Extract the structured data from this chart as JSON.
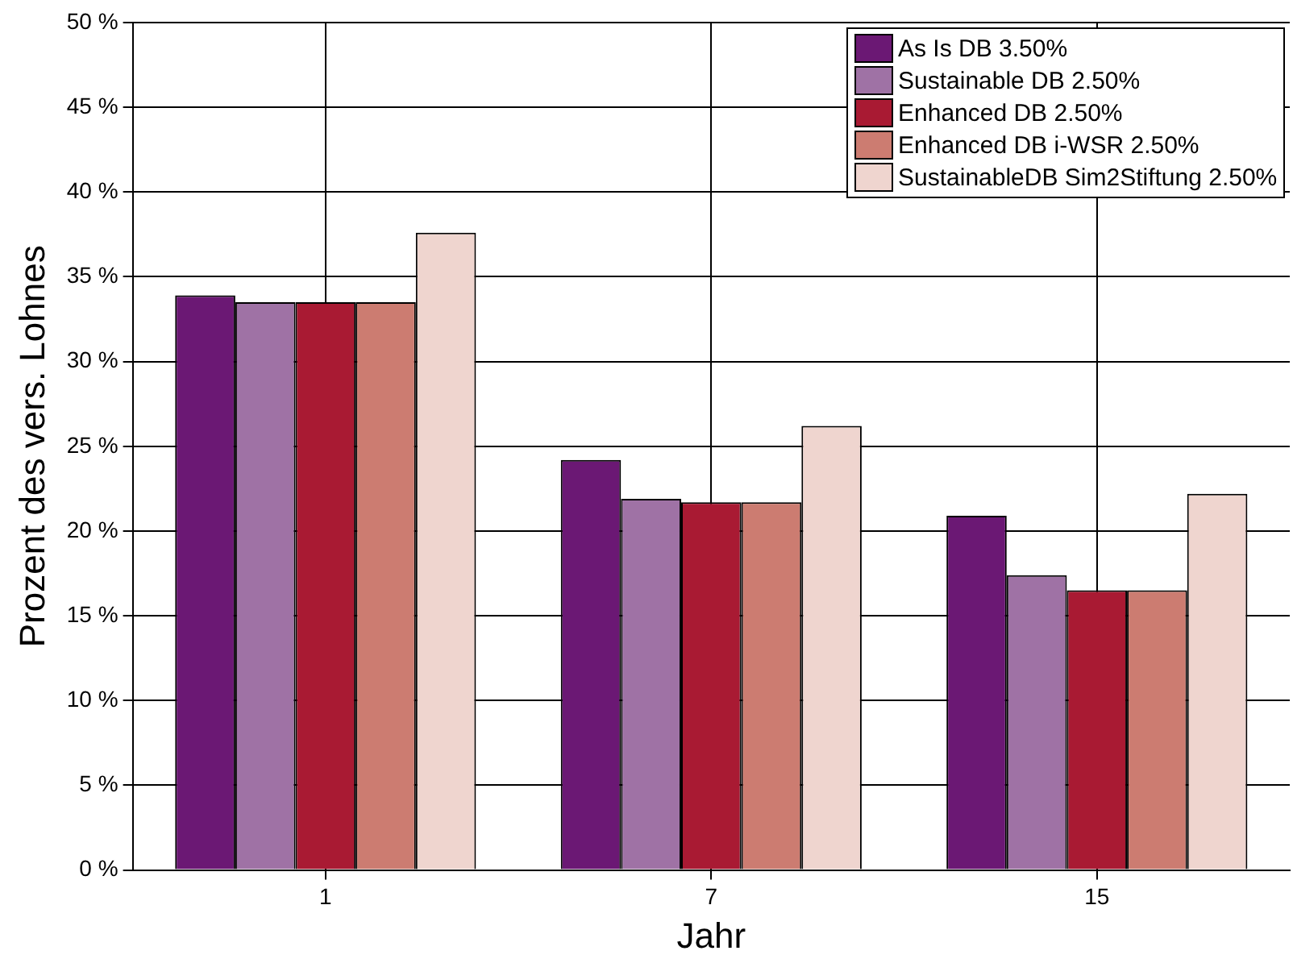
{
  "chart_data": {
    "type": "bar",
    "xlabel": "Jahr",
    "ylabel": "Prozent des vers. Lohnes",
    "categories": [
      "1",
      "7",
      "15"
    ],
    "series": [
      {
        "name": "As Is DB 3.50%",
        "color": "#6b1874",
        "values": [
          33.9,
          24.2,
          20.9
        ]
      },
      {
        "name": "Sustainable DB 2.50%",
        "color": "#9f72a5",
        "values": [
          33.5,
          21.9,
          17.4
        ]
      },
      {
        "name": "Enhanced DB 2.50%",
        "color": "#a91a33",
        "values": [
          33.5,
          21.7,
          16.5
        ]
      },
      {
        "name": "Enhanced DB i-WSR 2.50%",
        "color": "#cc7c71",
        "values": [
          33.5,
          21.7,
          16.5
        ]
      },
      {
        "name": "SustainableDB Sim2Stiftung 2.50%",
        "color": "#efd5cf",
        "values": [
          37.6,
          26.2,
          22.2
        ]
      }
    ],
    "ylim": [
      0,
      50
    ],
    "yticks": [
      {
        "value": 0,
        "label": "0 %"
      },
      {
        "value": 5,
        "label": "5 %"
      },
      {
        "value": 10,
        "label": "10 %"
      },
      {
        "value": 15,
        "label": "15 %"
      },
      {
        "value": 20,
        "label": "20 %"
      },
      {
        "value": 25,
        "label": "25 %"
      },
      {
        "value": 30,
        "label": "30 %"
      },
      {
        "value": 35,
        "label": "35 %"
      },
      {
        "value": 40,
        "label": "40 %"
      },
      {
        "value": 45,
        "label": "45 %"
      },
      {
        "value": 50,
        "label": "50 %"
      }
    ],
    "grid": true,
    "legend": "top right"
  }
}
